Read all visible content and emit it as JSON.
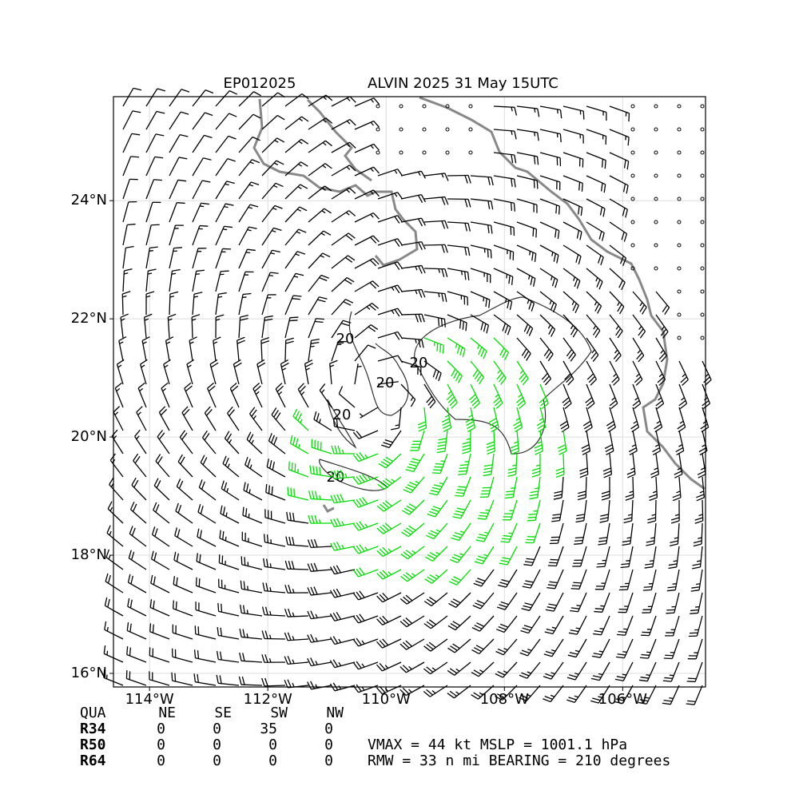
{
  "map": {
    "title_left": "EP012025",
    "title_right": "ALVIN 2025 31 May 15UTC",
    "xlim": [
      -114.61,
      -104.6
    ],
    "ylim": [
      15.77,
      25.76
    ],
    "xticks": [
      {
        "value": -114,
        "label": "114°W"
      },
      {
        "value": -112,
        "label": "112°W"
      },
      {
        "value": -110,
        "label": "110°W"
      },
      {
        "value": -108,
        "label": "108°W"
      },
      {
        "value": -106,
        "label": "106°W"
      }
    ],
    "yticks": [
      {
        "value": 16,
        "label": "16°N"
      },
      {
        "value": 18,
        "label": "18°N"
      },
      {
        "value": 20,
        "label": "20°N"
      },
      {
        "value": 22,
        "label": "22°N"
      },
      {
        "value": 24,
        "label": "24°N"
      }
    ],
    "contour_labels": [
      "20",
      "20",
      "20",
      "20",
      "20"
    ],
    "quadrant_table": {
      "header": [
        "QUA",
        "NE",
        "SE",
        "SW",
        "NW"
      ],
      "rows": [
        [
          "R34",
          "0",
          "0",
          "35",
          "0"
        ],
        [
          "R50",
          "0",
          "0",
          "0",
          "0"
        ],
        [
          "R64",
          "0",
          "0",
          "0",
          "0"
        ]
      ]
    },
    "stats": [
      "VMAX =  44 kt MSLP = 1001.1 hPa",
      "RMW =  33 n mi BEARING = 210 degrees"
    ]
  }
}
